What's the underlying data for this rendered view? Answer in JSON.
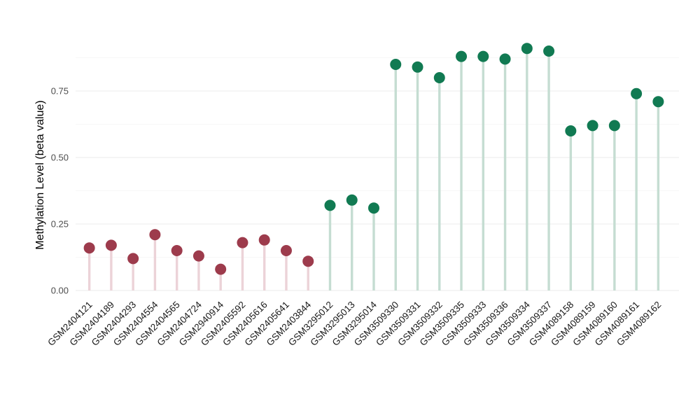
{
  "chart_data": {
    "type": "scatter",
    "variant": "lollipop",
    "title": "",
    "xlabel": "",
    "ylabel": "Methylation Level (beta value)",
    "ylim": [
      0,
      0.95
    ],
    "yticks": [
      "0.00",
      "0.25",
      "0.50",
      "0.75"
    ],
    "grid": "horizontal major (very light gray) with fainter minor lines",
    "legend": "none",
    "categories": [
      "GSM2404121",
      "GSM2404189",
      "GSM2404293",
      "GSM2404554",
      "GSM2404565",
      "GSM2404724",
      "GSM2940914",
      "GSM2405592",
      "GSM2405616",
      "GSM2405641",
      "GSM2403844",
      "GSM3295012",
      "GSM3295013",
      "GSM3295014",
      "GSM3509330",
      "GSM3509331",
      "GSM3509332",
      "GSM3509335",
      "GSM3509333",
      "GSM3509336",
      "GSM3509334",
      "GSM3509337",
      "GSM4089158",
      "GSM4089159",
      "GSM4089160",
      "GSM4089161",
      "GSM4089162"
    ],
    "values": [
      0.16,
      0.17,
      0.12,
      0.21,
      0.15,
      0.13,
      0.08,
      0.18,
      0.19,
      0.15,
      0.11,
      0.32,
      0.34,
      0.31,
      0.85,
      0.84,
      0.8,
      0.88,
      0.88,
      0.87,
      0.91,
      0.9,
      0.6,
      0.62,
      0.62,
      0.74,
      0.71
    ],
    "groups": [
      "red",
      "red",
      "red",
      "red",
      "red",
      "red",
      "red",
      "red",
      "red",
      "red",
      "red",
      "green",
      "green",
      "green",
      "green",
      "green",
      "green",
      "green",
      "green",
      "green",
      "green",
      "green",
      "green",
      "green",
      "green",
      "green",
      "green"
    ],
    "colors": {
      "red_dot": "#9d3b4c",
      "red_stem": "#ecd3d8",
      "green_dot": "#117a52",
      "green_stem": "#c5ddd2",
      "grid_major": "#efefef",
      "grid_minor": "#f7f7f7",
      "background": "#ffffff"
    }
  }
}
